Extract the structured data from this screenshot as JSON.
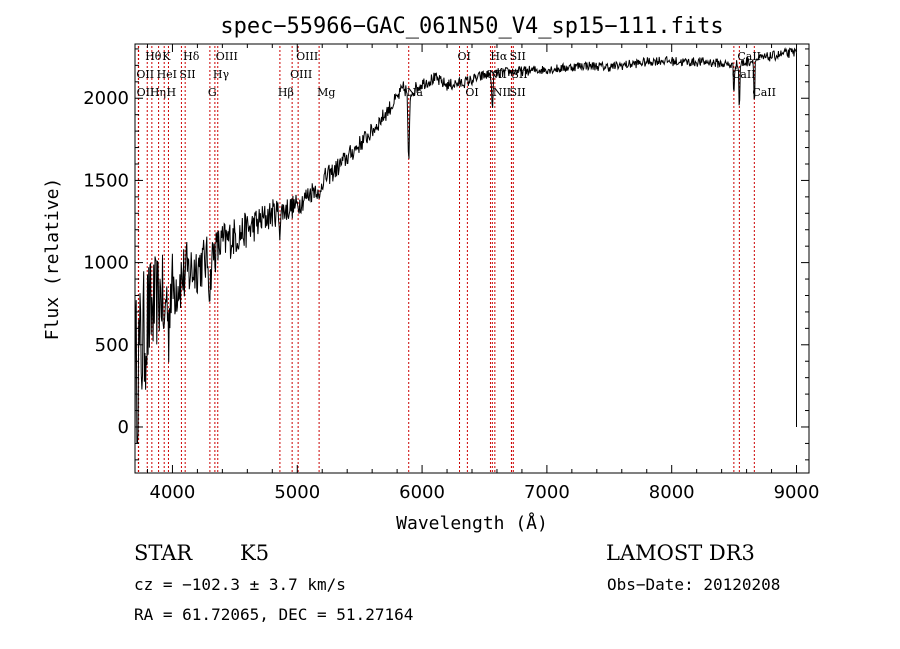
{
  "chart_data": {
    "type": "line",
    "title": "spec−55966−GAC_061N50_V4_sp15−111.fits",
    "xlabel": "Wavelength (Å)",
    "ylabel": "Flux (relative)",
    "xlim": [
      3700,
      9100
    ],
    "ylim": [
      -280,
      2330
    ],
    "xticks": [
      4000,
      5000,
      6000,
      7000,
      8000,
      9000
    ],
    "yticks": [
      0,
      500,
      1000,
      1500,
      2000
    ],
    "xtick_labels": [
      "4000",
      "5000",
      "6000",
      "7000",
      "8000",
      "9000"
    ],
    "ytick_labels": [
      "0",
      "500",
      "1000",
      "1500",
      "2000"
    ],
    "continuum": [
      [
        3700,
        300
      ],
      [
        3800,
        650
      ],
      [
        3900,
        800
      ],
      [
        4000,
        850
      ],
      [
        4100,
        930
      ],
      [
        4200,
        980
      ],
      [
        4300,
        1030
      ],
      [
        4400,
        1120
      ],
      [
        4500,
        1160
      ],
      [
        4600,
        1200
      ],
      [
        4700,
        1250
      ],
      [
        4800,
        1300
      ],
      [
        4900,
        1320
      ],
      [
        5000,
        1350
      ],
      [
        5100,
        1420
      ],
      [
        5200,
        1500
      ],
      [
        5300,
        1560
      ],
      [
        5400,
        1640
      ],
      [
        5500,
        1720
      ],
      [
        5600,
        1800
      ],
      [
        5700,
        1900
      ],
      [
        5800,
        2000
      ],
      [
        5850,
        2060
      ],
      [
        5900,
        2030
      ],
      [
        6000,
        2090
      ],
      [
        6100,
        2120
      ],
      [
        6200,
        2080
      ],
      [
        6300,
        2090
      ],
      [
        6400,
        2110
      ],
      [
        6500,
        2140
      ],
      [
        6700,
        2160
      ],
      [
        6900,
        2170
      ],
      [
        7100,
        2180
      ],
      [
        7300,
        2200
      ],
      [
        7500,
        2190
      ],
      [
        7700,
        2210
      ],
      [
        7900,
        2230
      ],
      [
        8100,
        2220
      ],
      [
        8300,
        2220
      ],
      [
        8500,
        2200
      ],
      [
        8700,
        2240
      ],
      [
        8900,
        2270
      ],
      [
        9000,
        2280
      ]
    ],
    "absorptions": [
      {
        "x": 5893,
        "depth": 450,
        "width": 8
      },
      {
        "x": 6563,
        "depth": 260,
        "width": 6
      },
      {
        "x": 8498,
        "depth": 180,
        "width": 5
      },
      {
        "x": 8542,
        "depth": 300,
        "width": 5
      },
      {
        "x": 8662,
        "depth": 280,
        "width": 5
      },
      {
        "x": 4861,
        "depth": 100,
        "width": 8
      },
      {
        "x": 5175,
        "depth": 120,
        "width": 12
      },
      {
        "x": 4300,
        "depth": 200,
        "width": 10
      },
      {
        "x": 3934,
        "depth": 300,
        "width": 8
      },
      {
        "x": 3968,
        "depth": 280,
        "width": 8
      }
    ],
    "noise_amplitude": [
      [
        3700,
        500
      ],
      [
        3900,
        260
      ],
      [
        4300,
        140
      ],
      [
        5000,
        70
      ],
      [
        6000,
        40
      ],
      [
        7000,
        28
      ],
      [
        9000,
        30
      ]
    ],
    "end_spike": {
      "x": 9000,
      "from": 2280,
      "to": 0
    },
    "lines": [
      {
        "label": "Hθ",
        "x": 3798,
        "row": 0
      },
      {
        "label": "K",
        "x": 3934,
        "row": 0
      },
      {
        "label": "Hδ",
        "x": 4102,
        "row": 0
      },
      {
        "label": "OIII",
        "x": 4363,
        "row": 0
      },
      {
        "label": "OIII",
        "x": 5007,
        "row": 0
      },
      {
        "label": "OI",
        "x": 6300,
        "row": 0
      },
      {
        "label": "Hα",
        "x": 6563,
        "row": 0
      },
      {
        "label": "SII",
        "x": 6717,
        "row": 0
      },
      {
        "label": "CaII",
        "x": 8542,
        "row": 0
      },
      {
        "label": "OII",
        "x": 3727,
        "row": 1
      },
      {
        "label": "HeI",
        "x": 3889,
        "row": 1
      },
      {
        "label": "SII",
        "x": 4072,
        "row": 1
      },
      {
        "label": "Hγ",
        "x": 4340,
        "row": 1
      },
      {
        "label": "OIII",
        "x": 4959,
        "row": 1
      },
      {
        "label": "NII",
        "x": 6548,
        "row": 1
      },
      {
        "label": "SII",
        "x": 6731,
        "row": 1
      },
      {
        "label": "CaII",
        "x": 8498,
        "row": 1
      },
      {
        "label": "OII",
        "x": 3729,
        "row": 2
      },
      {
        "label": "Hη",
        "x": 3835,
        "row": 2
      },
      {
        "label": "H",
        "x": 3968,
        "row": 2
      },
      {
        "label": "G",
        "x": 4300,
        "row": 2
      },
      {
        "label": "Hβ",
        "x": 4861,
        "row": 2
      },
      {
        "label": "Mg",
        "x": 5175,
        "row": 2
      },
      {
        "label": "Na",
        "x": 5893,
        "row": 2
      },
      {
        "label": "OI",
        "x": 6363,
        "row": 2
      },
      {
        "label": "NII",
        "x": 6583,
        "row": 2
      },
      {
        "label": "SII",
        "x": 6716,
        "row": 2
      },
      {
        "label": "CaII",
        "x": 8662,
        "row": 2
      }
    ],
    "line_color": "#cc0000"
  },
  "info": {
    "class": "STAR",
    "subclass": "K5",
    "survey": "LAMOST DR3",
    "cz": "cz = −102.3 ± 3.7 km/s",
    "obs_date": "Obs−Date: 20120208",
    "radec": "RA =  61.72065, DEC =  51.27164"
  }
}
